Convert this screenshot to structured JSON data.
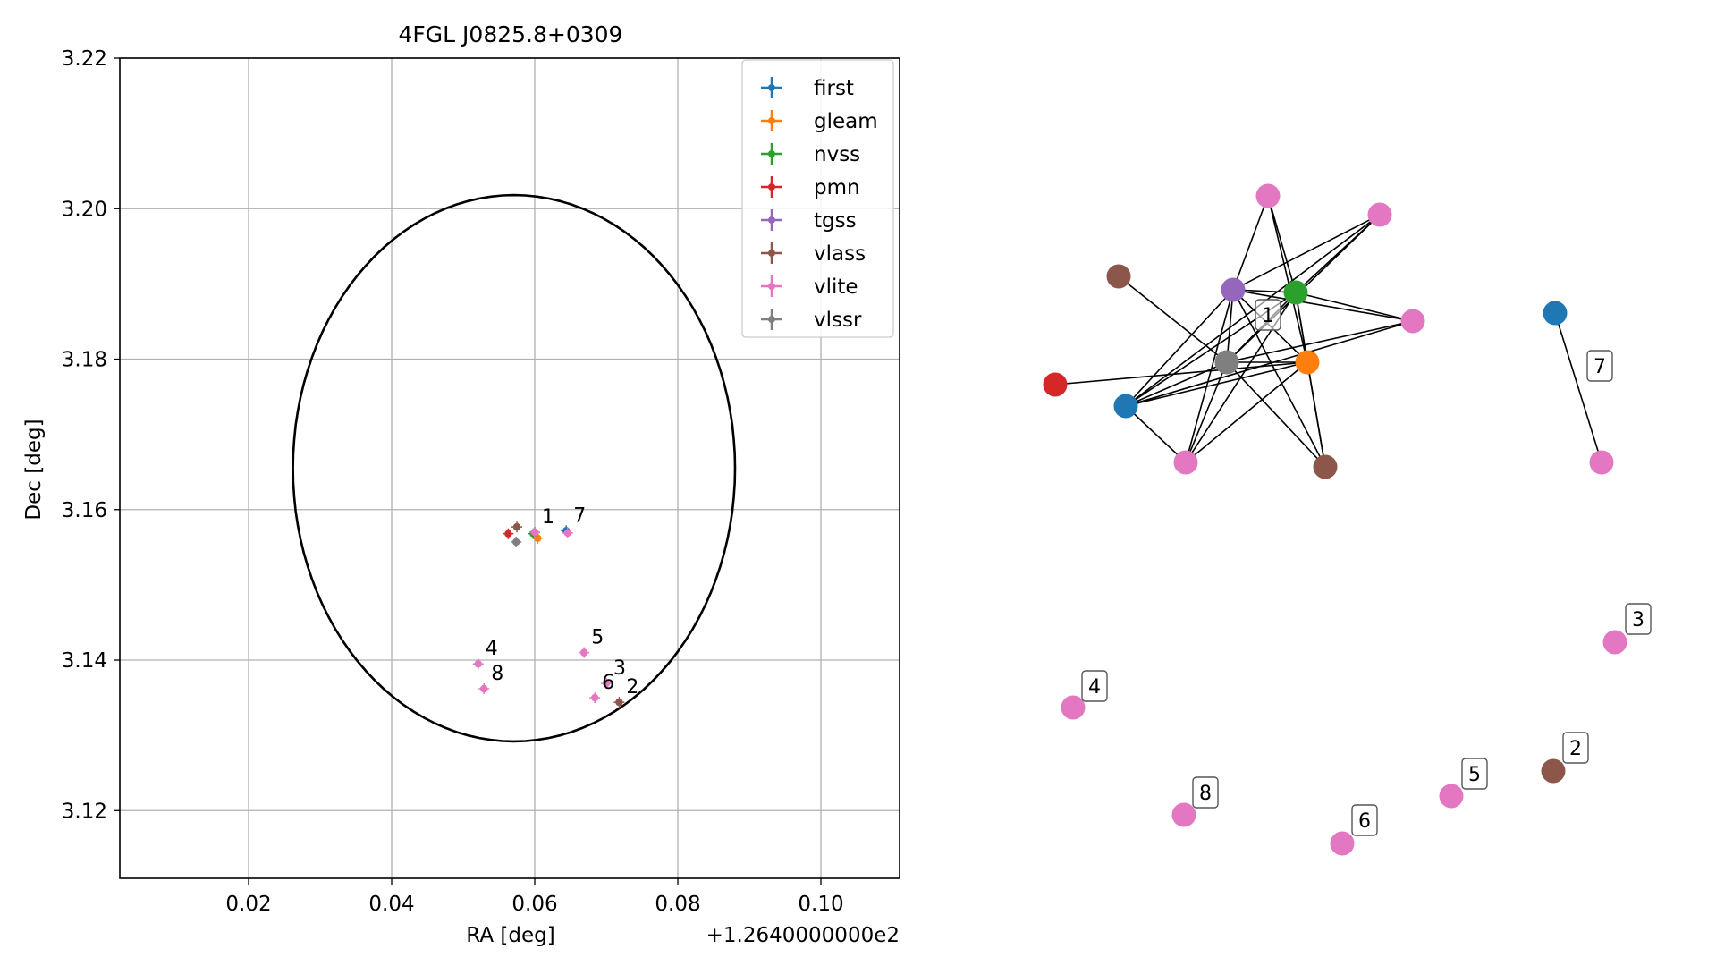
{
  "colors": {
    "first": "#1f77b4",
    "gleam": "#ff7f0e",
    "nvss": "#2ca02c",
    "pmn": "#d62728",
    "tgss": "#9467bd",
    "vlass": "#8c564b",
    "vlite": "#e377c2",
    "vlssr": "#7f7f7f"
  },
  "chart_data": [
    {
      "type": "scatter",
      "title": "4FGL J0825.8+0309",
      "xlabel": "RA [deg]",
      "ylabel": "Dec [deg]",
      "x_offset_label": "+1.2640000000e2",
      "xlim": [
        0.002,
        0.111
      ],
      "ylim": [
        3.111,
        3.22
      ],
      "xticks": [
        0.02,
        0.04,
        0.06,
        0.08,
        0.1
      ],
      "xtick_labels": [
        "0.02",
        "0.04",
        "0.06",
        "0.08",
        "0.10"
      ],
      "yticks": [
        3.12,
        3.14,
        3.16,
        3.18,
        3.2,
        3.22
      ],
      "ytick_labels": [
        "3.12",
        "3.14",
        "3.16",
        "3.18",
        "3.20",
        "3.22"
      ],
      "grid": true,
      "legend_position": "top-right",
      "legend": [
        "first",
        "gleam",
        "nvss",
        "pmn",
        "tgss",
        "vlass",
        "vlite",
        "vlssr"
      ],
      "ellipse": {
        "center": [
          0.0571,
          3.1655
        ],
        "semi_axis_x": 0.0309,
        "semi_axis_y": 0.0363
      },
      "points": [
        {
          "survey": "first",
          "x": 0.0644,
          "y": 3.1572
        },
        {
          "survey": "gleam",
          "x": 0.0604,
          "y": 3.1562
        },
        {
          "survey": "nvss",
          "x": 0.0598,
          "y": 3.1568
        },
        {
          "survey": "pmn",
          "x": 0.0563,
          "y": 3.1568
        },
        {
          "survey": "tgss",
          "x": 0.06,
          "y": 3.157
        },
        {
          "survey": "vlass",
          "x": 0.0575,
          "y": 3.1577
        },
        {
          "survey": "vlass",
          "x": 0.0718,
          "y": 3.1344
        },
        {
          "survey": "vlite",
          "x": 0.06,
          "y": 3.157
        },
        {
          "survey": "vlite",
          "x": 0.0646,
          "y": 3.1569
        },
        {
          "survey": "vlite",
          "x": 0.07,
          "y": 3.1369
        },
        {
          "survey": "vlite",
          "x": 0.0521,
          "y": 3.1395
        },
        {
          "survey": "vlite",
          "x": 0.0669,
          "y": 3.141
        },
        {
          "survey": "vlite",
          "x": 0.0684,
          "y": 3.135
        },
        {
          "survey": "vlite",
          "x": 0.0529,
          "y": 3.1362
        },
        {
          "survey": "vlssr",
          "x": 0.0574,
          "y": 3.1557
        }
      ],
      "annotations": [
        {
          "text": "1",
          "x": 0.06,
          "y": 3.157
        },
        {
          "text": "7",
          "x": 0.0644,
          "y": 3.1572
        },
        {
          "text": "4",
          "x": 0.0521,
          "y": 3.1395
        },
        {
          "text": "8",
          "x": 0.0529,
          "y": 3.1362
        },
        {
          "text": "5",
          "x": 0.0669,
          "y": 3.141
        },
        {
          "text": "3",
          "x": 0.07,
          "y": 3.1369
        },
        {
          "text": "6",
          "x": 0.0684,
          "y": 3.135
        },
        {
          "text": "2",
          "x": 0.0718,
          "y": 3.1344
        }
      ]
    },
    {
      "type": "network",
      "nodes": [
        {
          "id": "vlite-top",
          "survey": "vlite"
        },
        {
          "id": "vlite-topright",
          "survey": "vlite"
        },
        {
          "id": "vlass-left",
          "survey": "vlass"
        },
        {
          "id": "tgss",
          "survey": "tgss"
        },
        {
          "id": "nvss",
          "survey": "nvss"
        },
        {
          "id": "vlite-right",
          "survey": "vlite"
        },
        {
          "id": "vlssr",
          "survey": "vlssr"
        },
        {
          "id": "gleam",
          "survey": "gleam"
        },
        {
          "id": "pmn",
          "survey": "pmn"
        },
        {
          "id": "first-left",
          "survey": "first"
        },
        {
          "id": "vlite-bottom",
          "survey": "vlite"
        },
        {
          "id": "vlass-bottom",
          "survey": "vlass"
        },
        {
          "id": "first-7",
          "survey": "first"
        },
        {
          "id": "vlite-7",
          "survey": "vlite"
        },
        {
          "id": "vlite-3",
          "survey": "vlite"
        },
        {
          "id": "vlite-4",
          "survey": "vlite"
        },
        {
          "id": "vlass-2",
          "survey": "vlass"
        },
        {
          "id": "vlite-5",
          "survey": "vlite"
        },
        {
          "id": "vlite-8",
          "survey": "vlite"
        },
        {
          "id": "vlite-6",
          "survey": "vlite"
        }
      ],
      "edges": [
        [
          "vlite-top",
          "tgss"
        ],
        [
          "vlite-top",
          "nvss"
        ],
        [
          "vlite-top",
          "gleam"
        ],
        [
          "vlite-topright",
          "tgss"
        ],
        [
          "vlite-topright",
          "nvss"
        ],
        [
          "vlite-topright",
          "vlssr"
        ],
        [
          "vlite-topright",
          "first-left"
        ],
        [
          "vlass-left",
          "vlssr"
        ],
        [
          "tgss",
          "nvss"
        ],
        [
          "tgss",
          "vlite-right"
        ],
        [
          "tgss",
          "vlssr"
        ],
        [
          "tgss",
          "gleam"
        ],
        [
          "tgss",
          "first-left"
        ],
        [
          "tgss",
          "vlite-bottom"
        ],
        [
          "tgss",
          "vlass-bottom"
        ],
        [
          "nvss",
          "vlite-right"
        ],
        [
          "nvss",
          "vlssr"
        ],
        [
          "nvss",
          "gleam"
        ],
        [
          "nvss",
          "first-left"
        ],
        [
          "nvss",
          "vlite-bottom"
        ],
        [
          "nvss",
          "vlass-bottom"
        ],
        [
          "vlite-right",
          "vlssr"
        ],
        [
          "vlite-right",
          "first-left"
        ],
        [
          "vlssr",
          "gleam"
        ],
        [
          "vlssr",
          "first-left"
        ],
        [
          "vlssr",
          "vlite-bottom"
        ],
        [
          "vlssr",
          "vlass-bottom"
        ],
        [
          "gleam",
          "pmn"
        ],
        [
          "gleam",
          "first-left"
        ],
        [
          "gleam",
          "vlite-bottom"
        ],
        [
          "gleam",
          "vlass-bottom"
        ],
        [
          "first-left",
          "vlite-bottom"
        ],
        [
          "first-7",
          "vlite-7"
        ]
      ],
      "labels": [
        "1",
        "7",
        "3",
        "4",
        "2",
        "5",
        "8",
        "6"
      ]
    }
  ]
}
